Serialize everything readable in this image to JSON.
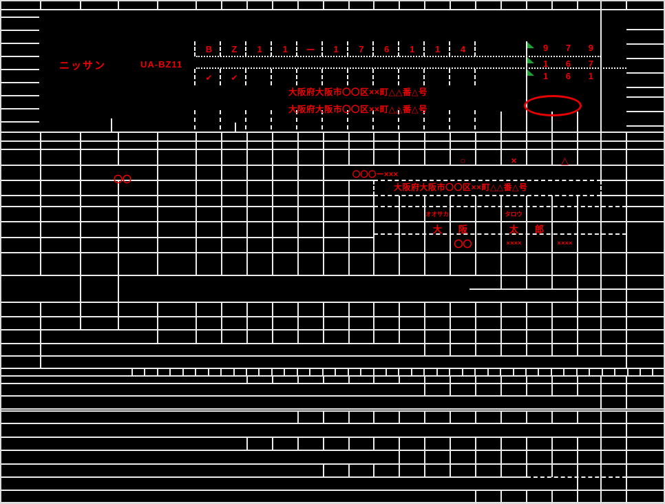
{
  "palette": {
    "ink_red": "#ef0000",
    "marker_green": "#21a038",
    "grid_line": "#ececec",
    "background": "#000000"
  },
  "vehicle": {
    "maker": "ニッサン",
    "model_code": "UA-BZ11",
    "chassis_cells": [
      "B",
      "Z",
      "1",
      "1",
      "ー",
      "1",
      "7",
      "6",
      "1",
      "1",
      "4"
    ],
    "check_marks": [
      "✔",
      "✔"
    ],
    "code_row_1": "9 7 9",
    "code_row_2": "1 6 7",
    "code_row_3": "1 6 1",
    "registered_address_1": "大阪府大阪市〇〇区××町△△番△号",
    "registered_address_2": "大阪府大阪市〇〇区××町△△番△号"
  },
  "owner": {
    "mark_circle": "○",
    "mark_cross": "×",
    "mark_triangle": "△",
    "owner_code": "〇〇",
    "phone_number": "〇〇〇ー×××",
    "address": "大阪府大阪市〇〇区××町△△番△号",
    "furigana_family": "オオサカ",
    "furigana_given": "タロウ",
    "name_family_chars": [
      "大",
      "阪"
    ],
    "name_given_chars": [
      "太",
      "郎"
    ],
    "bottom_codes": [
      "〇〇",
      "××××",
      "××××"
    ]
  }
}
